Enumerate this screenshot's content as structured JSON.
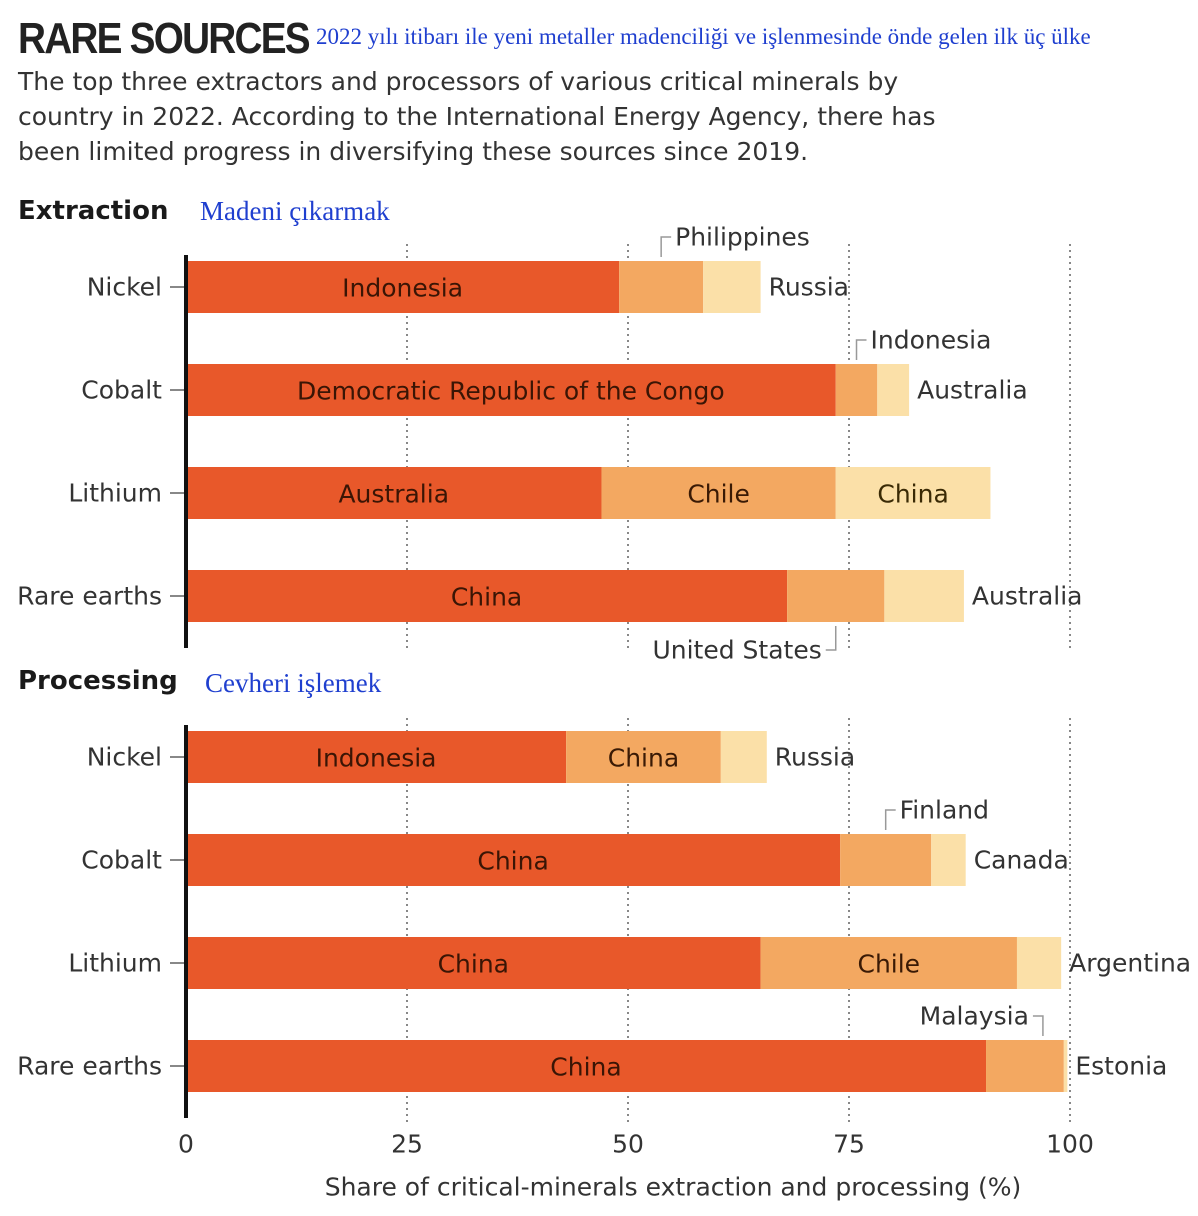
{
  "header": {
    "title": "RARE SOURCES",
    "translated_title": "2022 yılı itibarı ile yeni metaller madenciliği ve işlenmesinde önde gelen ilk üç ülke",
    "subtitle": "The top three extractors and processors of various critical minerals by country in 2022. According to the International Energy Agency, there has been limited progress in diversifying these sources since 2019."
  },
  "sections": {
    "extraction": {
      "title": "Extraction",
      "translated": "Madeni çıkarmak"
    },
    "processing": {
      "title": "Processing",
      "translated": "Cevheri işlemek"
    }
  },
  "colors": {
    "first": "#e8582a",
    "second": "#f3a861",
    "third": "#fbe0a8",
    "axis": "#111111",
    "grid": "#888888",
    "text": "#333333"
  },
  "chart_data": {
    "type": "bar",
    "orientation": "horizontal",
    "stacked": true,
    "xlabel": "Share of critical-minerals extraction and processing (%)",
    "xlim": [
      0,
      100
    ],
    "xticks": [
      0,
      25,
      50,
      75,
      100
    ],
    "grid": "vertical dotted at ticks",
    "panels": [
      {
        "name": "Extraction",
        "categories": [
          "Nickel",
          "Cobalt",
          "Lithium",
          "Rare earths"
        ],
        "bars": [
          {
            "category": "Nickel",
            "segments": [
              {
                "country": "Indonesia",
                "value": 49
              },
              {
                "country": "Philippines",
                "value": 9.5
              },
              {
                "country": "Russia",
                "value": 6.5
              }
            ]
          },
          {
            "category": "Cobalt",
            "segments": [
              {
                "country": "Democratic Republic of the Congo",
                "value": 73.5
              },
              {
                "country": "Indonesia",
                "value": 4.7
              },
              {
                "country": "Australia",
                "value": 3.6
              }
            ]
          },
          {
            "category": "Lithium",
            "segments": [
              {
                "country": "Australia",
                "value": 47
              },
              {
                "country": "Chile",
                "value": 26.5
              },
              {
                "country": "China",
                "value": 17.5
              }
            ]
          },
          {
            "category": "Rare earths",
            "segments": [
              {
                "country": "China",
                "value": 68
              },
              {
                "country": "United States",
                "value": 11
              },
              {
                "country": "Australia",
                "value": 9
              }
            ]
          }
        ]
      },
      {
        "name": "Processing",
        "categories": [
          "Nickel",
          "Cobalt",
          "Lithium",
          "Rare earths"
        ],
        "bars": [
          {
            "category": "Nickel",
            "segments": [
              {
                "country": "Indonesia",
                "value": 43
              },
              {
                "country": "China",
                "value": 17.5
              },
              {
                "country": "Russia",
                "value": 5.2
              }
            ]
          },
          {
            "category": "Cobalt",
            "segments": [
              {
                "country": "China",
                "value": 74
              },
              {
                "country": "Finland",
                "value": 10.3
              },
              {
                "country": "Canada",
                "value": 3.9
              }
            ]
          },
          {
            "category": "Lithium",
            "segments": [
              {
                "country": "China",
                "value": 65
              },
              {
                "country": "Chile",
                "value": 29
              },
              {
                "country": "Argentina",
                "value": 5
              }
            ]
          },
          {
            "category": "Rare earths",
            "segments": [
              {
                "country": "China",
                "value": 90.5
              },
              {
                "country": "Malaysia",
                "value": 8.8
              },
              {
                "country": "Estonia",
                "value": 0.4
              }
            ]
          }
        ]
      }
    ]
  }
}
